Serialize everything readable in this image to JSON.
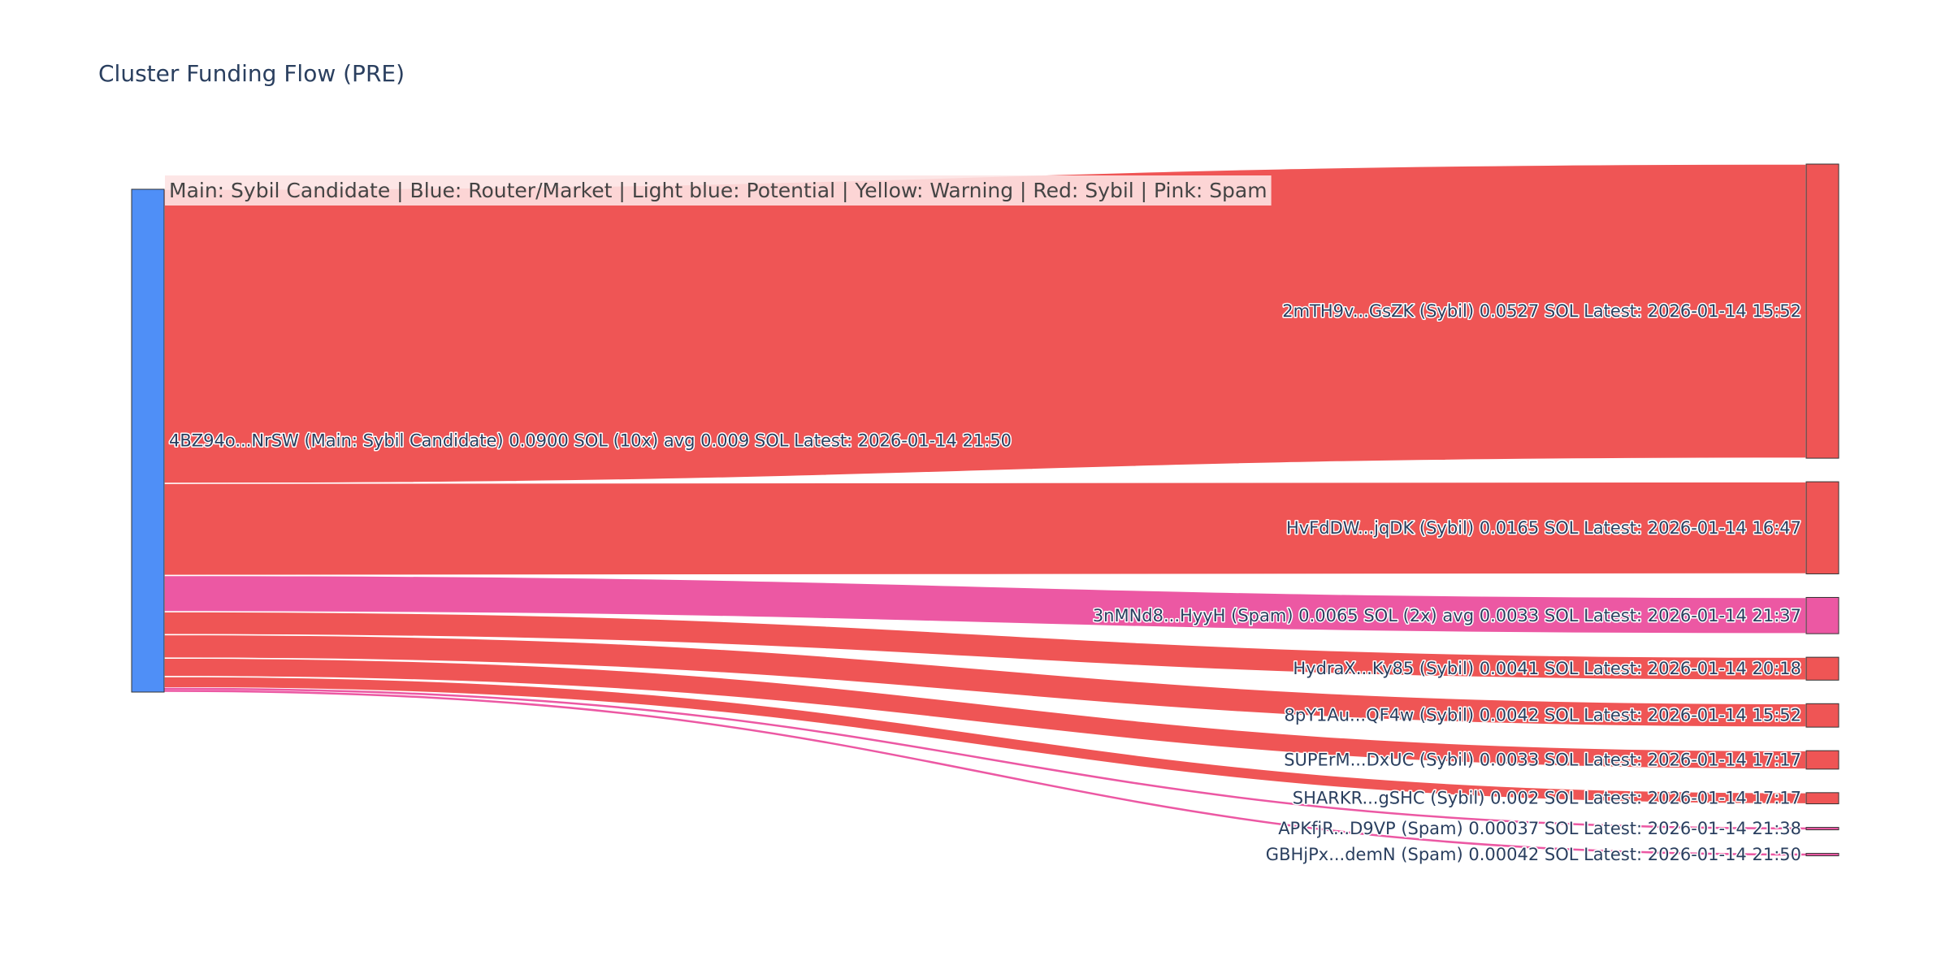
{
  "title": "Cluster Funding Flow (PRE)",
  "legend_text": "Main: Sybil Candidate  |  Blue: Router/Market | Light blue: Potential | Yellow: Warning | Red: Sybil | Pink: Spam",
  "colors": {
    "main": "#4f8ff7",
    "sybil": "#ef5555",
    "spam": "#ec58a3",
    "legend_bg": "#fde3e3",
    "text": "#2a3f5f"
  },
  "chart_data": {
    "type": "sankey",
    "source": {
      "id": "main",
      "label": "4BZ94o...NrSW (Main: Sybil Candidate) 0.0900 SOL (10x) avg 0.009 SOL Latest: 2026-01-14 21:50",
      "category": "main"
    },
    "targets": [
      {
        "id": "t1",
        "label": "2mTH9v...GsZK (Sybil) 0.0527 SOL Latest: 2026-01-14 15:52",
        "value": 0.0527,
        "category": "sybil"
      },
      {
        "id": "t2",
        "label": "HvFdDW...jqDK (Sybil) 0.0165 SOL Latest: 2026-01-14 16:47",
        "value": 0.0165,
        "category": "sybil"
      },
      {
        "id": "t3",
        "label": "3nMNd8...HyyH (Spam) 0.0065 SOL (2x) avg 0.0033 SOL Latest: 2026-01-14 21:37",
        "value": 0.0065,
        "category": "spam"
      },
      {
        "id": "t4",
        "label": "HydraX...Ky85 (Sybil) 0.0041 SOL Latest: 2026-01-14 20:18",
        "value": 0.0041,
        "category": "sybil"
      },
      {
        "id": "t5",
        "label": "8pY1Au...QF4w (Sybil) 0.0042 SOL Latest: 2026-01-14 15:52",
        "value": 0.0042,
        "category": "sybil"
      },
      {
        "id": "t6",
        "label": "SUPErM...DxUC (Sybil) 0.0033 SOL Latest: 2026-01-14 17:17",
        "value": 0.0033,
        "category": "sybil"
      },
      {
        "id": "t7",
        "label": "SHARKR...gSHC (Sybil) 0.002 SOL Latest: 2026-01-14 17:17",
        "value": 0.002,
        "category": "sybil"
      },
      {
        "id": "t8",
        "label": "APKfjR...D9VP (Spam) 0.00037 SOL Latest: 2026-01-14 21:38",
        "value": 0.00037,
        "category": "spam"
      },
      {
        "id": "t9",
        "label": "GBHjPx...demN (Spam) 0.00042 SOL Latest: 2026-01-14 21:50",
        "value": 0.00042,
        "category": "spam"
      }
    ]
  }
}
